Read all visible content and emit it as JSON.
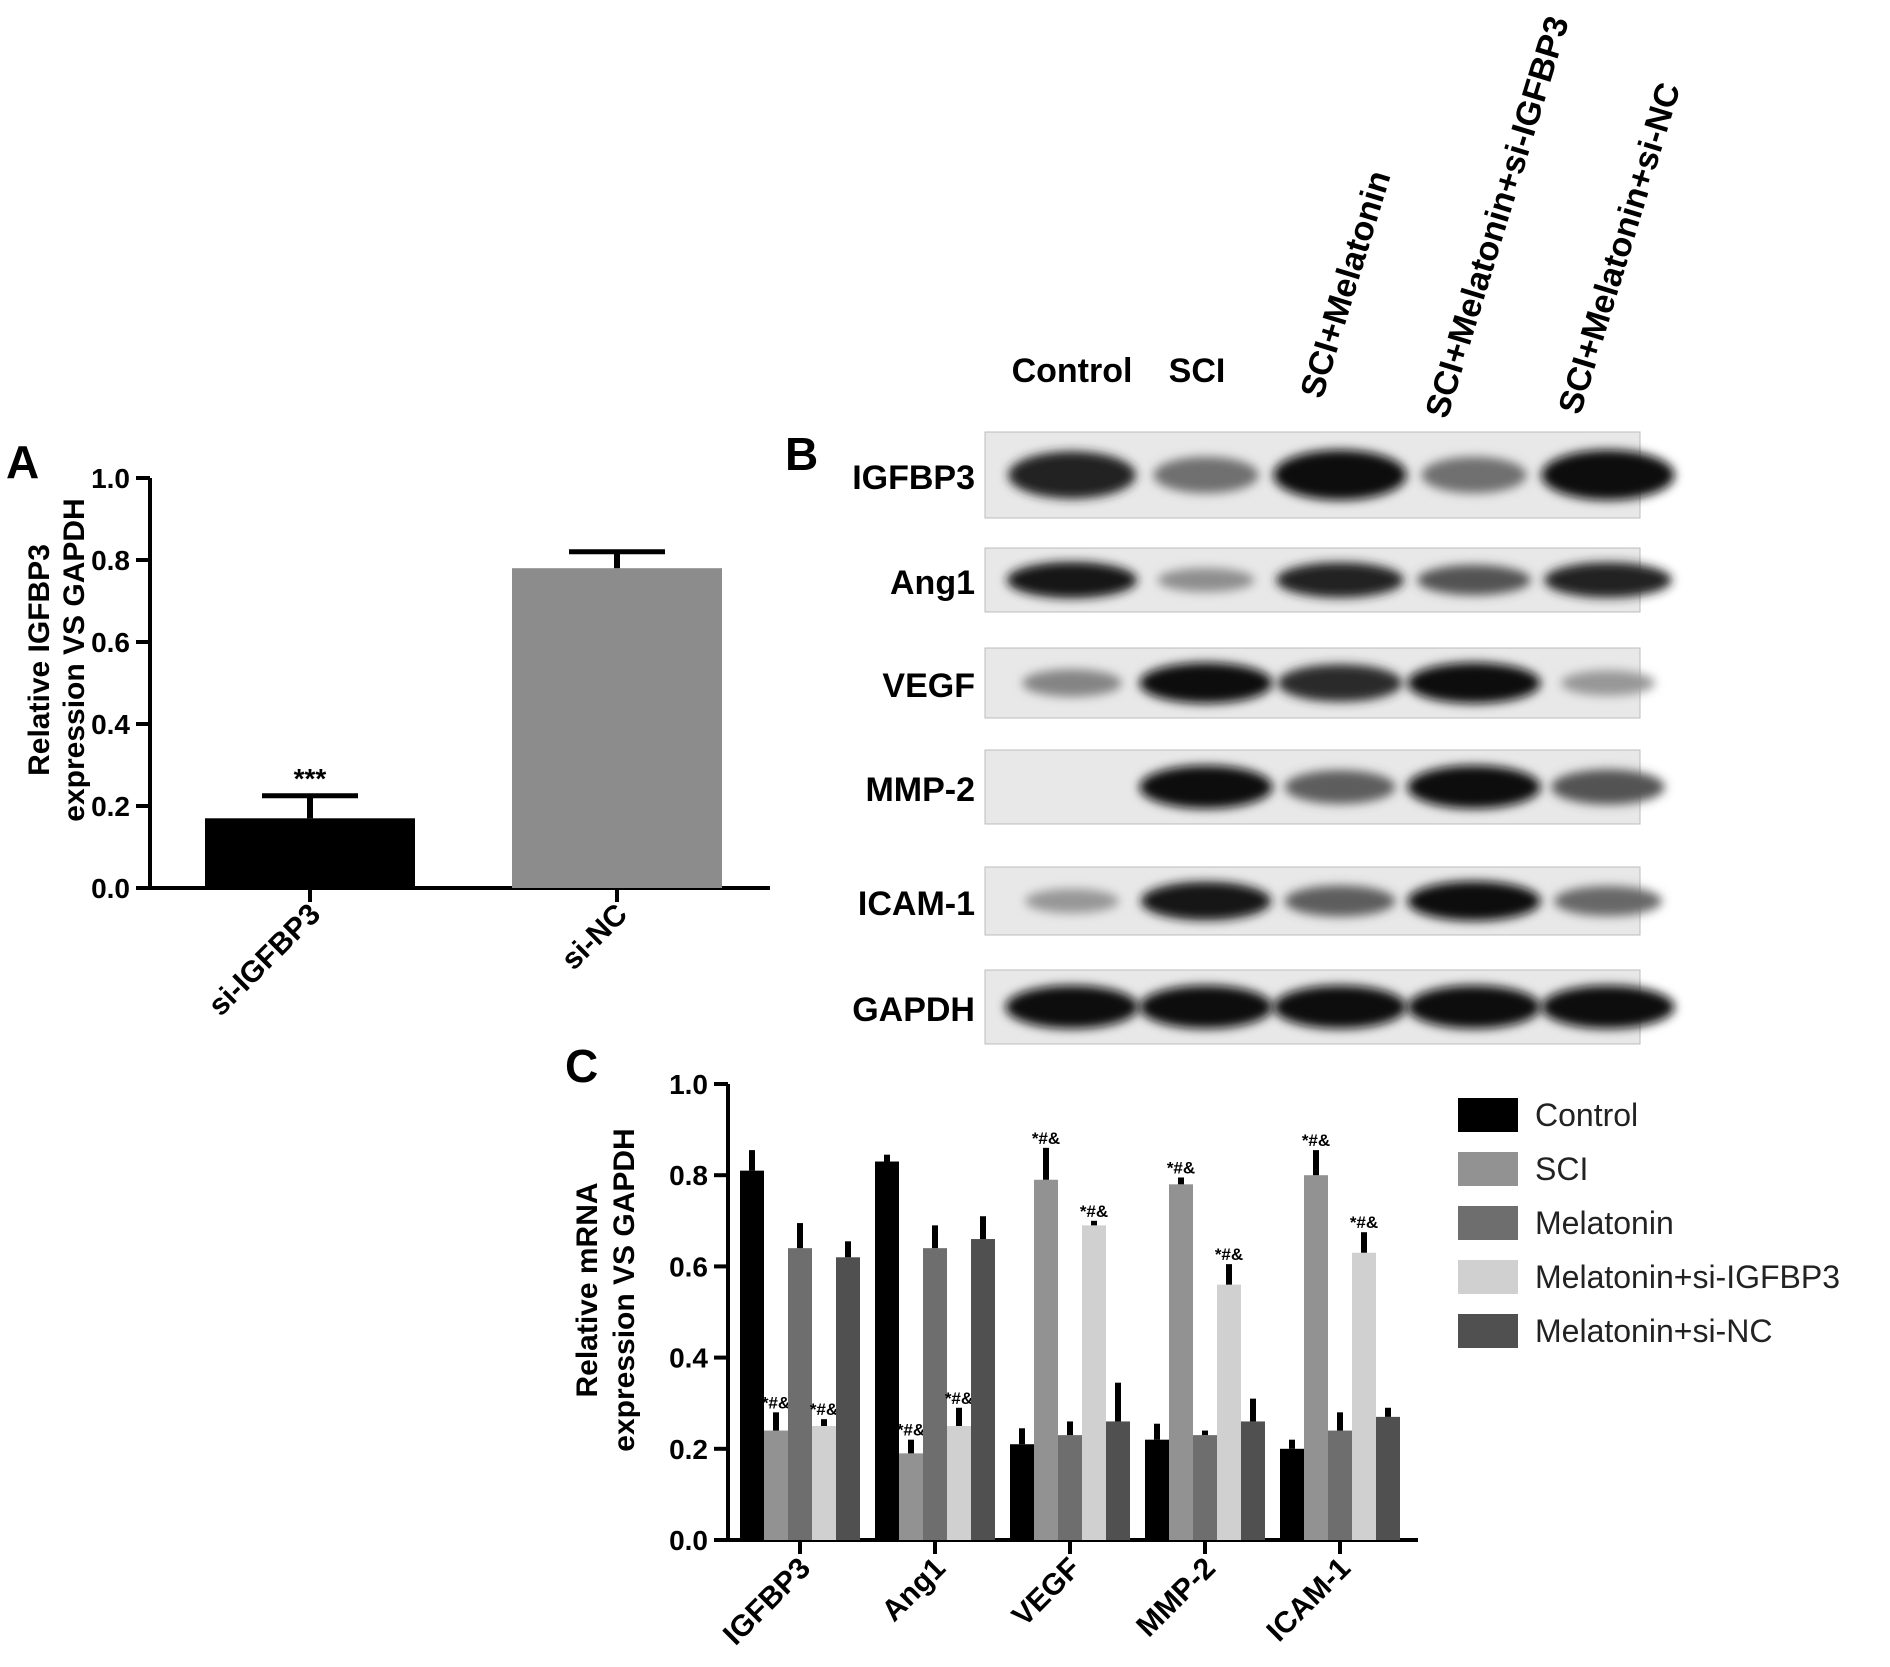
{
  "panels": {
    "a": "A",
    "b": "B",
    "c": "C"
  },
  "chart_data": [
    {
      "type": "bar",
      "panel": "A",
      "ylabel_lines": [
        "Relative IGFBP3",
        "expression VS GAPDH"
      ],
      "ylim": [
        0,
        1.0
      ],
      "yticks": [
        "0.0",
        "0.2",
        "0.4",
        "0.6",
        "0.8",
        "1.0"
      ],
      "categories": [
        "si-IGFBP3",
        "si-NC"
      ],
      "values": [
        0.17,
        0.78
      ],
      "errors": [
        0.055,
        0.04
      ],
      "colors": [
        "#000000",
        "#8c8c8c"
      ],
      "annotations": [
        "***",
        ""
      ]
    },
    {
      "type": "bar",
      "panel": "C",
      "ylabel_lines": [
        "Relative mRNA",
        "expression VS GAPDH"
      ],
      "ylim": [
        0,
        1.0
      ],
      "yticks": [
        "0.0",
        "0.2",
        "0.4",
        "0.6",
        "0.8",
        "1.0"
      ],
      "categories": [
        "IGFBP3",
        "Ang1",
        "VEGF",
        "MMP-2",
        "ICAM-1"
      ],
      "series": [
        {
          "name": "Control",
          "color": "#000000",
          "values": [
            0.81,
            0.83,
            0.21,
            0.22,
            0.2
          ],
          "errors": [
            0.045,
            0.015,
            0.035,
            0.035,
            0.02
          ],
          "annotations": [
            "",
            "",
            "",
            "",
            ""
          ]
        },
        {
          "name": "SCI",
          "color": "#929292",
          "values": [
            0.24,
            0.19,
            0.79,
            0.78,
            0.8
          ],
          "errors": [
            0.04,
            0.03,
            0.07,
            0.015,
            0.055
          ],
          "annotations": [
            "*#&",
            "*#&",
            "*#&",
            "*#&",
            "*#&"
          ]
        },
        {
          "name": "Melatonin",
          "color": "#6e6e6e",
          "values": [
            0.64,
            0.64,
            0.23,
            0.23,
            0.24
          ],
          "errors": [
            0.055,
            0.05,
            0.03,
            0.01,
            0.04
          ],
          "annotations": [
            "",
            "",
            "",
            "",
            ""
          ]
        },
        {
          "name": "Melatonin+si-IGFBP3",
          "color": "#d0d0d0",
          "values": [
            0.25,
            0.25,
            0.69,
            0.56,
            0.63
          ],
          "errors": [
            0.015,
            0.04,
            0.01,
            0.045,
            0.045
          ],
          "annotations": [
            "*#&",
            "*#&",
            "*#&",
            "*#&",
            "*#&"
          ]
        },
        {
          "name": "Melatonin+si-NC",
          "color": "#505050",
          "values": [
            0.62,
            0.66,
            0.26,
            0.26,
            0.27
          ],
          "errors": [
            0.035,
            0.05,
            0.085,
            0.05,
            0.02
          ],
          "annotations": [
            "",
            "",
            "",
            "",
            ""
          ]
        }
      ],
      "legend": "right"
    }
  ],
  "blot": {
    "lanes": [
      "Control",
      "SCI",
      "SCI+Melatonin",
      "SCI+Melatonin+si-IGFBP3",
      "SCI+Melatonin+si-NC"
    ],
    "rows": [
      {
        "label": "IGFBP3",
        "intensity": [
          0.85,
          0.45,
          0.95,
          0.45,
          0.95
        ]
      },
      {
        "label": "Ang1",
        "intensity": [
          0.9,
          0.3,
          0.85,
          0.6,
          0.85
        ]
      },
      {
        "label": "VEGF",
        "intensity": [
          0.35,
          0.95,
          0.8,
          0.95,
          0.25
        ]
      },
      {
        "label": "MMP-2",
        "intensity": [
          0.0,
          0.95,
          0.55,
          0.95,
          0.6
        ]
      },
      {
        "label": "ICAM-1",
        "intensity": [
          0.25,
          0.9,
          0.55,
          0.95,
          0.5
        ]
      },
      {
        "label": "GAPDH",
        "intensity": [
          0.95,
          0.95,
          0.95,
          0.95,
          0.95
        ]
      }
    ]
  }
}
